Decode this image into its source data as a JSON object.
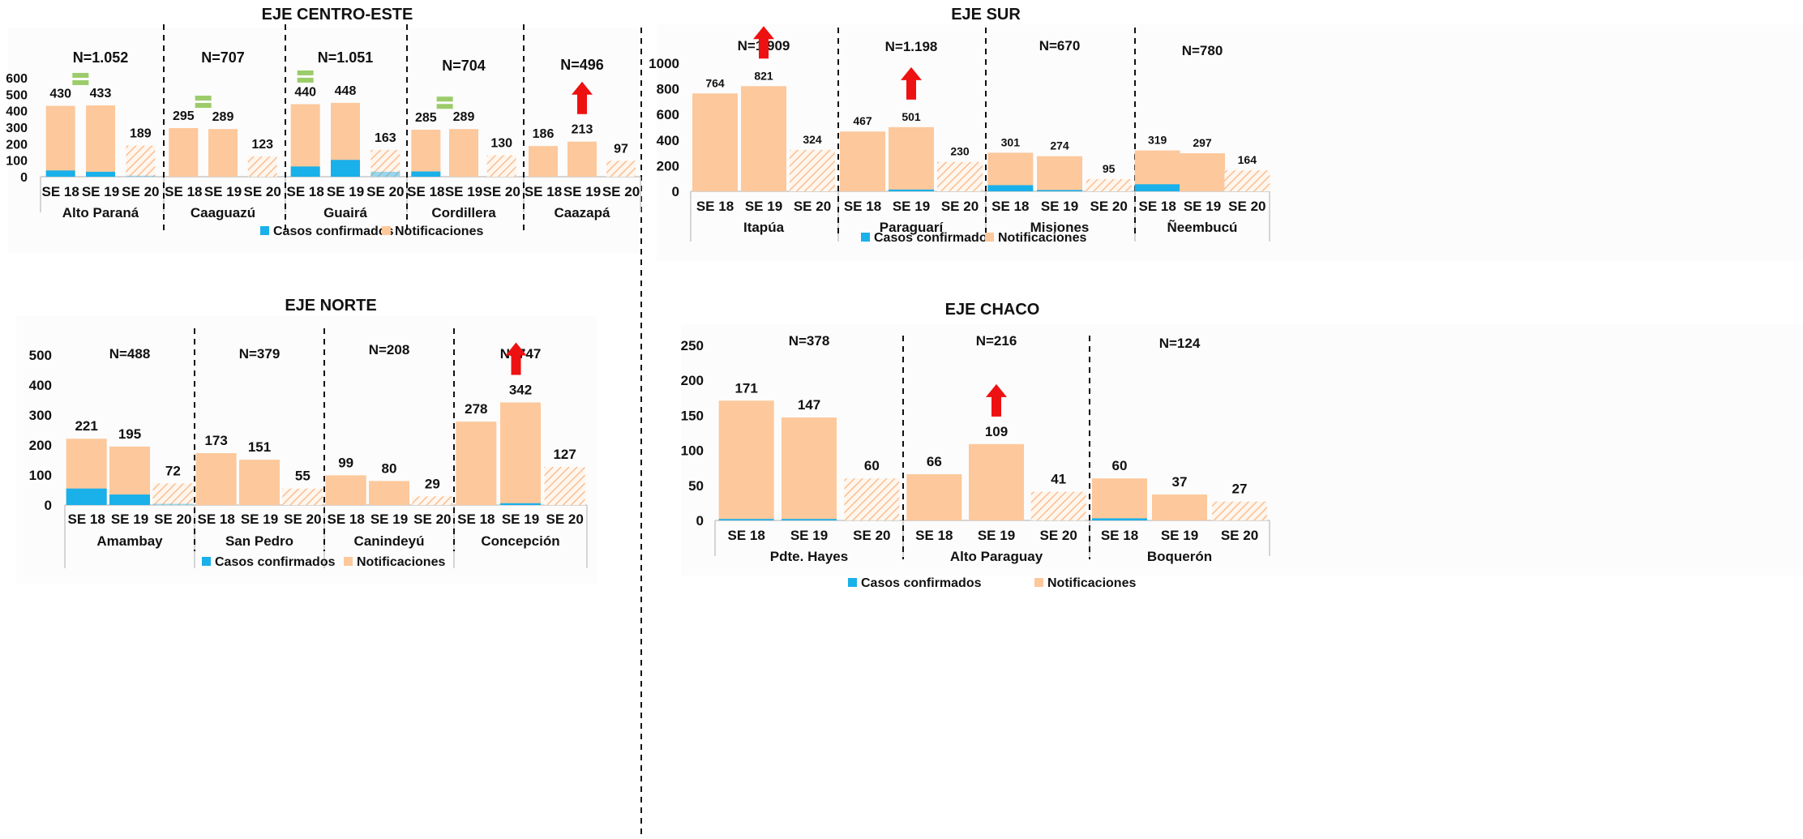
{
  "colors": {
    "confirmed": "#1ab0ea",
    "notifications": "#fdc89b",
    "arrow": "#ee1111",
    "equal": "#9ccc6a",
    "hatch": "#f8bf94"
  },
  "chart_data": [
    {
      "type": "bar",
      "stacked": true,
      "title": "EJE CENTRO-ESTE",
      "ylim": [
        0,
        600
      ],
      "yticks": [
        0,
        100,
        200,
        300,
        400,
        500,
        600
      ],
      "legend": [
        "Casos confirmados",
        "Notificaciones"
      ],
      "legend_position": "bottom",
      "groups": [
        {
          "name": "Alto Paraná",
          "n": "N=1.052",
          "categories": [
            "SE 18",
            "SE 19",
            "SE 20"
          ],
          "confirmed": [
            38,
            30,
            6
          ],
          "notifications": [
            430,
            433,
            189
          ],
          "labels": [
            "430",
            "433",
            "189"
          ],
          "indicator": {
            "kind": "equal",
            "at": 0.5
          }
        },
        {
          "name": "Caaguazú",
          "n": "N=707",
          "categories": [
            "SE 18",
            "SE 19",
            "SE 20"
          ],
          "confirmed": [
            0,
            0,
            0
          ],
          "notifications": [
            295,
            289,
            123
          ],
          "labels": [
            "295",
            "289",
            "123"
          ],
          "indicator": {
            "kind": "equal",
            "at": 0.5
          }
        },
        {
          "name": "Guairá",
          "n": "N=1.051",
          "categories": [
            "SE 18",
            "SE 19",
            "SE 20"
          ],
          "confirmed": [
            62,
            102,
            30
          ],
          "notifications": [
            440,
            448,
            163
          ],
          "labels": [
            "440",
            "448",
            "163"
          ],
          "indicator": {
            "kind": "equal",
            "at": 0
          }
        },
        {
          "name": "Cordillera",
          "n": "N=704",
          "categories": [
            "SE 18",
            "SE 19",
            "SE 20"
          ],
          "confirmed": [
            32,
            0,
            0
          ],
          "notifications": [
            285,
            289,
            130
          ],
          "labels": [
            "285",
            "289",
            "130"
          ],
          "indicator": {
            "kind": "equal",
            "at": 0.5
          }
        },
        {
          "name": "Caazapá",
          "n": "N=496",
          "categories": [
            "SE 18",
            "SE 19",
            "SE 20"
          ],
          "confirmed": [
            0,
            0,
            0
          ],
          "notifications": [
            186,
            213,
            97
          ],
          "labels": [
            "186",
            "213",
            "97"
          ],
          "indicator": {
            "kind": "up",
            "at": 1
          }
        }
      ]
    },
    {
      "type": "bar",
      "stacked": true,
      "title": "EJE SUR",
      "ylim": [
        0,
        1000
      ],
      "yticks": [
        0,
        200,
        400,
        600,
        800,
        1000
      ],
      "legend": [
        "Casos confirmados",
        "Notificaciones"
      ],
      "legend_position": "bottom",
      "groups": [
        {
          "name": "Itapúa",
          "n": "N=1.909",
          "categories": [
            "SE 18",
            "SE 19",
            "SE 20"
          ],
          "confirmed": [
            0,
            0,
            0
          ],
          "notifications": [
            764,
            821,
            324
          ],
          "labels": [
            "764",
            "821",
            "324"
          ],
          "indicator": {
            "kind": "up",
            "at": 1
          }
        },
        {
          "name": "Paraguarí",
          "n": "N=1.198",
          "categories": [
            "SE 18",
            "SE 19",
            "SE 20"
          ],
          "confirmed": [
            0,
            14,
            0
          ],
          "notifications": [
            467,
            501,
            230
          ],
          "labels": [
            "467",
            "501",
            "230"
          ],
          "indicator": {
            "kind": "up",
            "at": 1
          }
        },
        {
          "name": "Misiones",
          "n": "N=670",
          "categories": [
            "SE 18",
            "SE 19",
            "SE 20"
          ],
          "confirmed": [
            48,
            10,
            0
          ],
          "notifications": [
            301,
            274,
            95
          ],
          "labels": [
            "301",
            "274",
            "95"
          ]
        },
        {
          "name": "Ñeembucú",
          "n": "N=780",
          "categories": [
            "SE 18",
            "SE 19",
            "SE 20"
          ],
          "confirmed": [
            55,
            0,
            0
          ],
          "notifications": [
            319,
            297,
            164
          ],
          "labels": [
            "319",
            "297",
            "164"
          ]
        }
      ]
    },
    {
      "type": "bar",
      "stacked": true,
      "title": "EJE NORTE",
      "ylim": [
        0,
        500
      ],
      "yticks": [
        0,
        100,
        200,
        300,
        400,
        500
      ],
      "legend": [
        "Casos confirmados",
        "Notificaciones"
      ],
      "legend_position": "bottom",
      "groups": [
        {
          "name": "Amambay",
          "n": "N=488",
          "categories": [
            "SE 18",
            "SE 19",
            "SE 20"
          ],
          "confirmed": [
            55,
            35,
            4
          ],
          "notifications": [
            221,
            195,
            72
          ],
          "labels": [
            "221",
            "195",
            "72"
          ]
        },
        {
          "name": "San Pedro",
          "n": "N=379",
          "categories": [
            "SE 18",
            "SE 19",
            "SE 20"
          ],
          "confirmed": [
            0,
            0,
            0
          ],
          "notifications": [
            173,
            151,
            55
          ],
          "labels": [
            "173",
            "151",
            "55"
          ]
        },
        {
          "name": "Canindeyú",
          "n": "N=208",
          "categories": [
            "SE 18",
            "SE 19",
            "SE 20"
          ],
          "confirmed": [
            0,
            0,
            0
          ],
          "notifications": [
            99,
            80,
            29
          ],
          "labels": [
            "99",
            "80",
            "29"
          ]
        },
        {
          "name": "Concepción",
          "n": "N=747",
          "categories": [
            "SE 18",
            "SE 19",
            "SE 20"
          ],
          "confirmed": [
            0,
            6,
            0
          ],
          "notifications": [
            278,
            342,
            127
          ],
          "labels": [
            "278",
            "342",
            "127"
          ],
          "indicator": {
            "kind": "up",
            "at": 0.9
          }
        }
      ]
    },
    {
      "type": "bar",
      "stacked": true,
      "title": "EJE CHACO",
      "ylim": [
        0,
        250
      ],
      "yticks": [
        0,
        50,
        100,
        150,
        200,
        250
      ],
      "legend": [
        "Casos confirmados",
        "Notificaciones"
      ],
      "legend_position": "bottom",
      "groups": [
        {
          "name": "Pdte. Hayes",
          "n": "N=378",
          "categories": [
            "SE 18",
            "SE 19",
            "SE 20"
          ],
          "confirmed": [
            2,
            2,
            0
          ],
          "notifications": [
            171,
            147,
            60
          ],
          "labels": [
            "171",
            "147",
            "60"
          ]
        },
        {
          "name": "Alto Paraguay",
          "n": "N=216",
          "categories": [
            "SE 18",
            "SE 19",
            "SE 20"
          ],
          "confirmed": [
            0,
            0,
            0
          ],
          "notifications": [
            66,
            109,
            41
          ],
          "labels": [
            "66",
            "109",
            "41"
          ],
          "indicator": {
            "kind": "up",
            "at": 1
          }
        },
        {
          "name": "Boquerón",
          "n": "N=124",
          "categories": [
            "SE 18",
            "SE 19",
            "SE 20"
          ],
          "confirmed": [
            3,
            0,
            0
          ],
          "notifications": [
            60,
            37,
            27
          ],
          "labels": [
            "60",
            "37",
            "27"
          ]
        }
      ]
    }
  ]
}
